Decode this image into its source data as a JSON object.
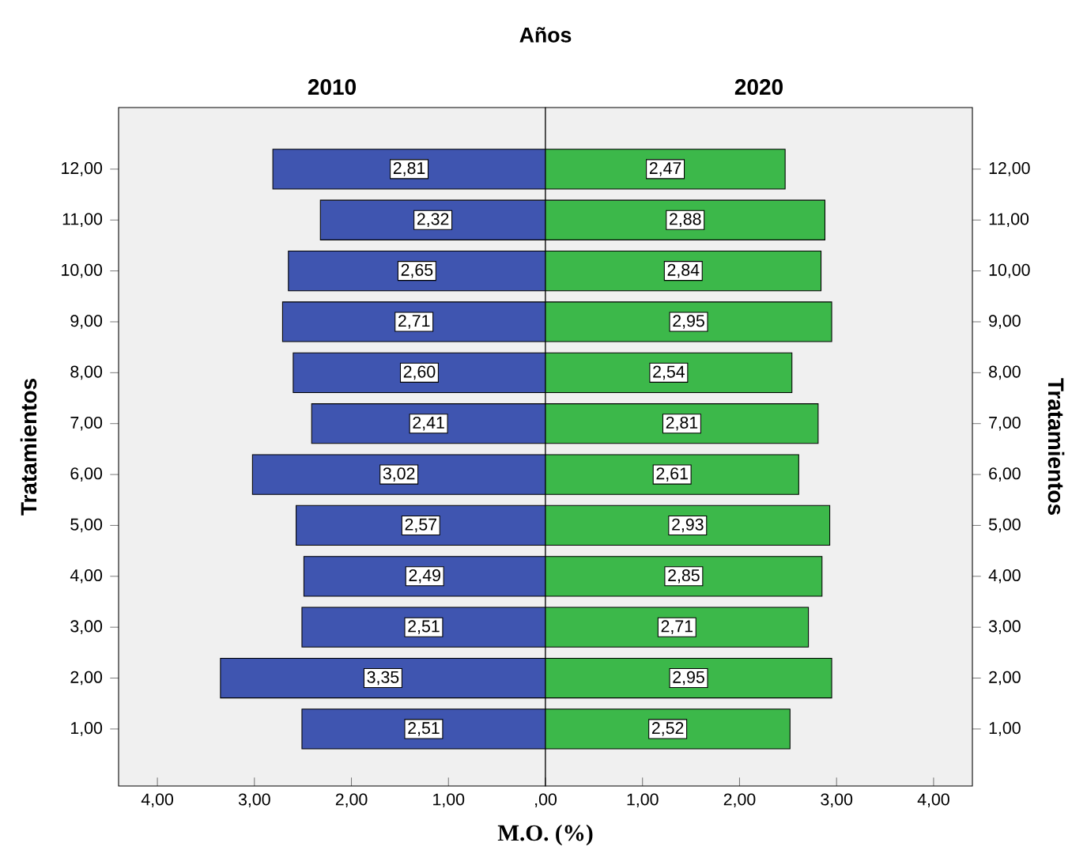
{
  "chart_data": [
    {
      "type": "bar",
      "orientation": "horizontal",
      "title": "2010",
      "annotations": [
        "Años"
      ],
      "xlabel": "M.O. (%)",
      "ylabel": "Tratamientos",
      "categories": [
        "12,00",
        "11,00",
        "10,00",
        "9,00",
        "8,00",
        "7,00",
        "6,00",
        "5,00",
        "4,00",
        "3,00",
        "2,00",
        "1,00"
      ],
      "values": [
        2.81,
        2.32,
        2.65,
        2.71,
        2.6,
        2.41,
        3.02,
        2.57,
        2.49,
        2.51,
        3.35,
        2.51
      ],
      "color": "#3f55b0",
      "value_labels": [
        "2,81",
        "2,32",
        "2,65",
        "2,71",
        "2,60",
        "2,41",
        "3,02",
        "2,57",
        "2,49",
        "2,51",
        "3,35",
        "2,51"
      ],
      "xlim": [
        4.4,
        0
      ],
      "xticks": [
        {
          "value": 4,
          "label": "4,00"
        },
        {
          "value": 3,
          "label": "3,00"
        },
        {
          "value": 2,
          "label": "2,00"
        },
        {
          "value": 1,
          "label": "1,00"
        },
        {
          "value": 0,
          "label": ",00"
        }
      ]
    },
    {
      "type": "bar",
      "orientation": "horizontal",
      "title": "2020",
      "ylabel": "Tratamientos",
      "categories": [
        "12,00",
        "11,00",
        "10,00",
        "9,00",
        "8,00",
        "7,00",
        "6,00",
        "5,00",
        "4,00",
        "3,00",
        "2,00",
        "1,00"
      ],
      "values": [
        2.47,
        2.88,
        2.84,
        2.95,
        2.54,
        2.81,
        2.61,
        2.93,
        2.85,
        2.71,
        2.95,
        2.52
      ],
      "color": "#3cb84a",
      "value_labels": [
        "2,47",
        "2,88",
        "2,84",
        "2,95",
        "2,54",
        "2,81",
        "2,61",
        "2,93",
        "2,85",
        "2,71",
        "2,95",
        "2,52"
      ],
      "xlim": [
        0,
        4.4
      ],
      "xticks": [
        {
          "value": 0,
          "label": null
        },
        {
          "value": 1,
          "label": "1,00"
        },
        {
          "value": 2,
          "label": "2,00"
        },
        {
          "value": 3,
          "label": "3,00"
        },
        {
          "value": 4,
          "label": "4,00"
        }
      ]
    }
  ]
}
